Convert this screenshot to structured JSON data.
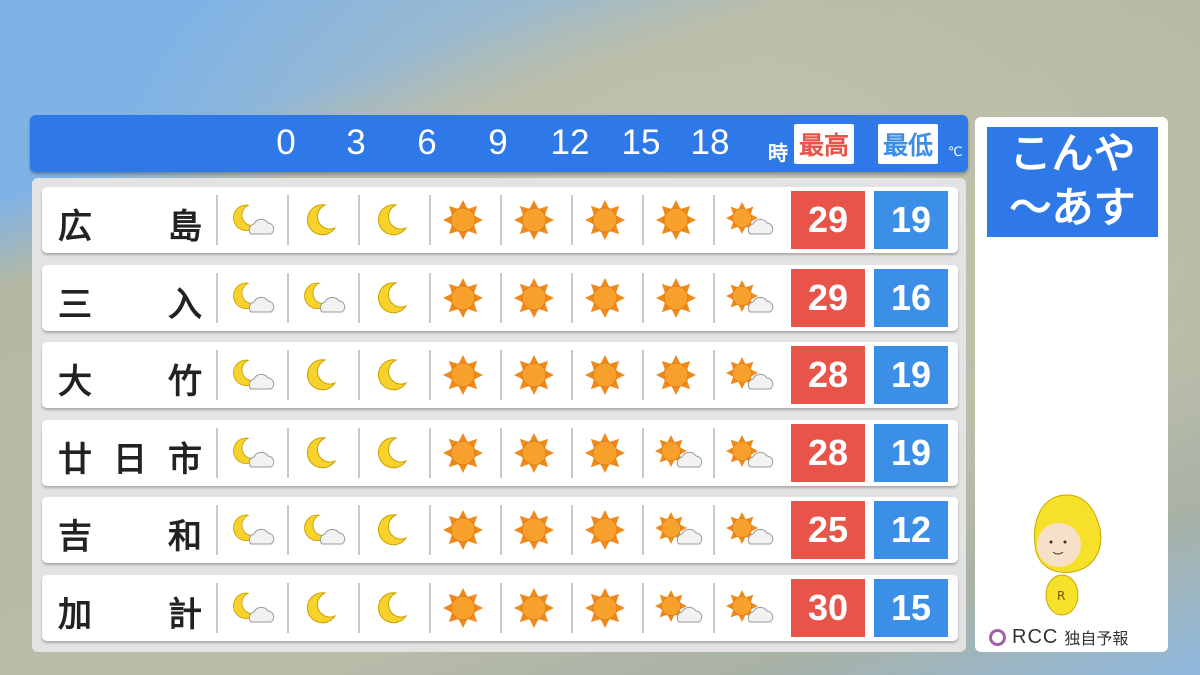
{
  "header": {
    "hours": [
      "0",
      "3",
      "6",
      "9",
      "12",
      "15",
      "18"
    ],
    "hour_unit": "時",
    "max_label": "最高",
    "min_label": "最低",
    "temp_unit": "℃"
  },
  "colors": {
    "header": "#2f78e8",
    "max": "#e8534a",
    "min": "#3b8fe6"
  },
  "rows": [
    {
      "name": [
        "広",
        "島"
      ],
      "icons": [
        "moon-cloud",
        "moon",
        "moon",
        "sun",
        "sun",
        "sun",
        "sun",
        "sun-cloud"
      ],
      "max": "29",
      "min": "19"
    },
    {
      "name": [
        "三",
        "入"
      ],
      "icons": [
        "moon-cloud",
        "moon-cloud",
        "moon",
        "sun",
        "sun",
        "sun",
        "sun",
        "sun-cloud"
      ],
      "max": "29",
      "min": "16"
    },
    {
      "name": [
        "大",
        "竹"
      ],
      "icons": [
        "moon-cloud",
        "moon",
        "moon",
        "sun",
        "sun",
        "sun",
        "sun",
        "sun-cloud"
      ],
      "max": "28",
      "min": "19"
    },
    {
      "name": [
        "廿",
        "日",
        "市"
      ],
      "icons": [
        "moon-cloud",
        "moon",
        "moon",
        "sun",
        "sun",
        "sun",
        "sun-cloud",
        "sun-cloud"
      ],
      "max": "28",
      "min": "19"
    },
    {
      "name": [
        "吉",
        "和"
      ],
      "icons": [
        "moon-cloud",
        "moon-cloud",
        "moon",
        "sun",
        "sun",
        "sun",
        "sun-cloud",
        "sun-cloud"
      ],
      "max": "25",
      "min": "12"
    },
    {
      "name": [
        "加",
        "計"
      ],
      "icons": [
        "moon-cloud",
        "moon",
        "moon",
        "sun",
        "sun",
        "sun",
        "sun-cloud",
        "sun-cloud"
      ],
      "max": "30",
      "min": "15"
    }
  ],
  "side": {
    "title_line1": "こんや",
    "title_line2": "〜あす",
    "logo": "RCC",
    "caption": "独自予報"
  }
}
